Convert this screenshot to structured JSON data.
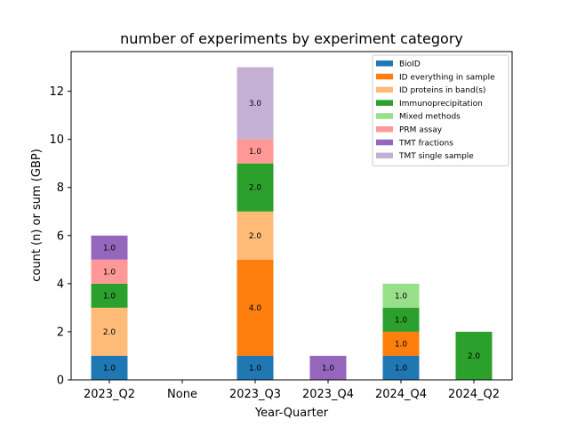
{
  "chart_data": {
    "type": "bar",
    "stacked": true,
    "title": "number of experiments by experiment category",
    "xlabel": "Year-Quarter",
    "ylabel": "count (n) or sum (GBP)",
    "ylim": [
      0,
      13.65
    ],
    "yticks": [
      0,
      2,
      4,
      6,
      8,
      10,
      12
    ],
    "categories": [
      "2023_Q2",
      "None",
      "2023_Q3",
      "2023_Q4",
      "2024_Q4",
      "2024_Q2"
    ],
    "legend_position": "top-right",
    "grid": false,
    "series": [
      {
        "name": "BioID",
        "color": "#1f77b4",
        "values": [
          1,
          0,
          1,
          0,
          1,
          0
        ]
      },
      {
        "name": "ID everything in sample",
        "color": "#ff7f0e",
        "values": [
          0,
          0,
          4,
          0,
          1,
          0
        ]
      },
      {
        "name": "ID proteins in band(s)",
        "color": "#ffbb78",
        "values": [
          2,
          0,
          2,
          0,
          0,
          0
        ]
      },
      {
        "name": "Immunoprecipitation",
        "color": "#2ca02c",
        "values": [
          1,
          0,
          2,
          0,
          1,
          2
        ]
      },
      {
        "name": "Mixed methods",
        "color": "#98df8a",
        "values": [
          0,
          0,
          0,
          0,
          1,
          0
        ]
      },
      {
        "name": "PRM assay",
        "color": "#ff9896",
        "values": [
          1,
          0,
          1,
          0,
          0,
          0
        ]
      },
      {
        "name": "TMT fractions",
        "color": "#9467bd",
        "values": [
          1,
          0,
          0,
          1,
          0,
          0
        ]
      },
      {
        "name": "TMT single sample",
        "color": "#c5b0d5",
        "values": [
          0,
          0,
          3,
          0,
          0,
          0
        ]
      }
    ]
  }
}
